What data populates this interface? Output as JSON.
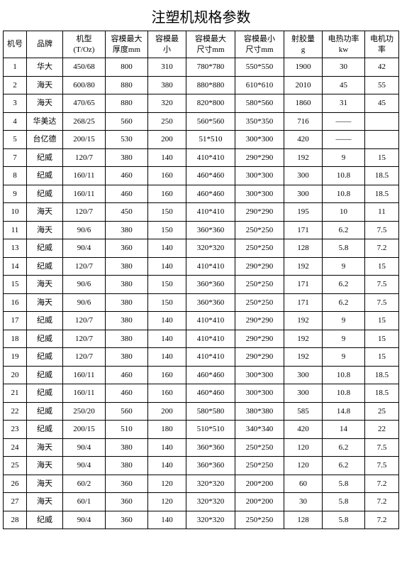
{
  "title": "注塑机规格参数",
  "table": {
    "columns": [
      {
        "label": "机号",
        "class": "col-0"
      },
      {
        "label": "品牌",
        "class": "col-1"
      },
      {
        "label": "机型\n(T/Oz)",
        "class": "col-2"
      },
      {
        "label": "容模最大\n厚度mm",
        "class": "col-3"
      },
      {
        "label": "容模最\n小",
        "class": "col-4"
      },
      {
        "label": "容模最大\n尺寸mm",
        "class": "col-5"
      },
      {
        "label": "容模最小\n尺寸mm",
        "class": "col-6"
      },
      {
        "label": "射胶量\ng",
        "class": "col-7"
      },
      {
        "label": "电热功率\nkw",
        "class": "col-8"
      },
      {
        "label": "电机功\n率",
        "class": "col-9"
      }
    ],
    "rows": [
      [
        "1",
        "华大",
        "450/68",
        "800",
        "310",
        "780*780",
        "550*550",
        "1900",
        "30",
        "42"
      ],
      [
        "2",
        "海天",
        "600/80",
        "880",
        "380",
        "880*880",
        "610*610",
        "2010",
        "45",
        "55"
      ],
      [
        "3",
        "海天",
        "470/65",
        "880",
        "320",
        "820*800",
        "580*560",
        "1860",
        "31",
        "45"
      ],
      [
        "4",
        "华美达",
        "268/25",
        "560",
        "250",
        "560*560",
        "350*350",
        "716",
        "——",
        ""
      ],
      [
        "5",
        "台亿德",
        "200/15",
        "530",
        "200",
        "51*510",
        "300*300",
        "420",
        "——",
        ""
      ],
      [
        "7",
        "纪威",
        "120/7",
        "380",
        "140",
        "410*410",
        "290*290",
        "192",
        "9",
        "15"
      ],
      [
        "8",
        "纪威",
        "160/11",
        "460",
        "160",
        "460*460",
        "300*300",
        "300",
        "10.8",
        "18.5"
      ],
      [
        "9",
        "纪威",
        "160/11",
        "460",
        "160",
        "460*460",
        "300*300",
        "300",
        "10.8",
        "18.5"
      ],
      [
        "10",
        "海天",
        "120/7",
        "450",
        "150",
        "410*410",
        "290*290",
        "195",
        "10",
        "11"
      ],
      [
        "11",
        "海天",
        "90/6",
        "380",
        "150",
        "360*360",
        "250*250",
        "171",
        "6.2",
        "7.5"
      ],
      [
        "13",
        "纪威",
        "90/4",
        "360",
        "140",
        "320*320",
        "250*250",
        "128",
        "5.8",
        "7.2"
      ],
      [
        "14",
        "纪威",
        "120/7",
        "380",
        "140",
        "410*410",
        "290*290",
        "192",
        "9",
        "15"
      ],
      [
        "15",
        "海天",
        "90/6",
        "380",
        "150",
        "360*360",
        "250*250",
        "171",
        "6.2",
        "7.5"
      ],
      [
        "16",
        "海天",
        "90/6",
        "380",
        "150",
        "360*360",
        "250*250",
        "171",
        "6.2",
        "7.5"
      ],
      [
        "17",
        "纪威",
        "120/7",
        "380",
        "140",
        "410*410",
        "290*290",
        "192",
        "9",
        "15"
      ],
      [
        "18",
        "纪威",
        "120/7",
        "380",
        "140",
        "410*410",
        "290*290",
        "192",
        "9",
        "15"
      ],
      [
        "19",
        "纪威",
        "120/7",
        "380",
        "140",
        "410*410",
        "290*290",
        "192",
        "9",
        "15"
      ],
      [
        "20",
        "纪威",
        "160/11",
        "460",
        "160",
        "460*460",
        "300*300",
        "300",
        "10.8",
        "18.5"
      ],
      [
        "21",
        "纪威",
        "160/11",
        "460",
        "160",
        "460*460",
        "300*300",
        "300",
        "10.8",
        "18.5"
      ],
      [
        "22",
        "纪威",
        "250/20",
        "560",
        "200",
        "580*580",
        "380*380",
        "585",
        "14.8",
        "25"
      ],
      [
        "23",
        "纪威",
        "200/15",
        "510",
        "180",
        "510*510",
        "340*340",
        "420",
        "14",
        "22"
      ],
      [
        "24",
        "海天",
        "90/4",
        "380",
        "140",
        "360*360",
        "250*250",
        "120",
        "6.2",
        "7.5"
      ],
      [
        "25",
        "海天",
        "90/4",
        "380",
        "140",
        "360*360",
        "250*250",
        "120",
        "6.2",
        "7.5"
      ],
      [
        "26",
        "海天",
        "60/2",
        "360",
        "120",
        "320*320",
        "200*200",
        "60",
        "5.8",
        "7.2"
      ],
      [
        "27",
        "海天",
        "60/1",
        "360",
        "120",
        "320*320",
        "200*200",
        "30",
        "5.8",
        "7.2"
      ],
      [
        "28",
        "纪威",
        "90/4",
        "360",
        "140",
        "320*320",
        "250*250",
        "128",
        "5.8",
        "7.2"
      ]
    ]
  },
  "styling": {
    "background_color": "#ffffff",
    "border_color": "#000000",
    "text_color": "#000000",
    "title_fontsize": 20,
    "cell_fontsize": 11,
    "font_family": "SimSun"
  }
}
